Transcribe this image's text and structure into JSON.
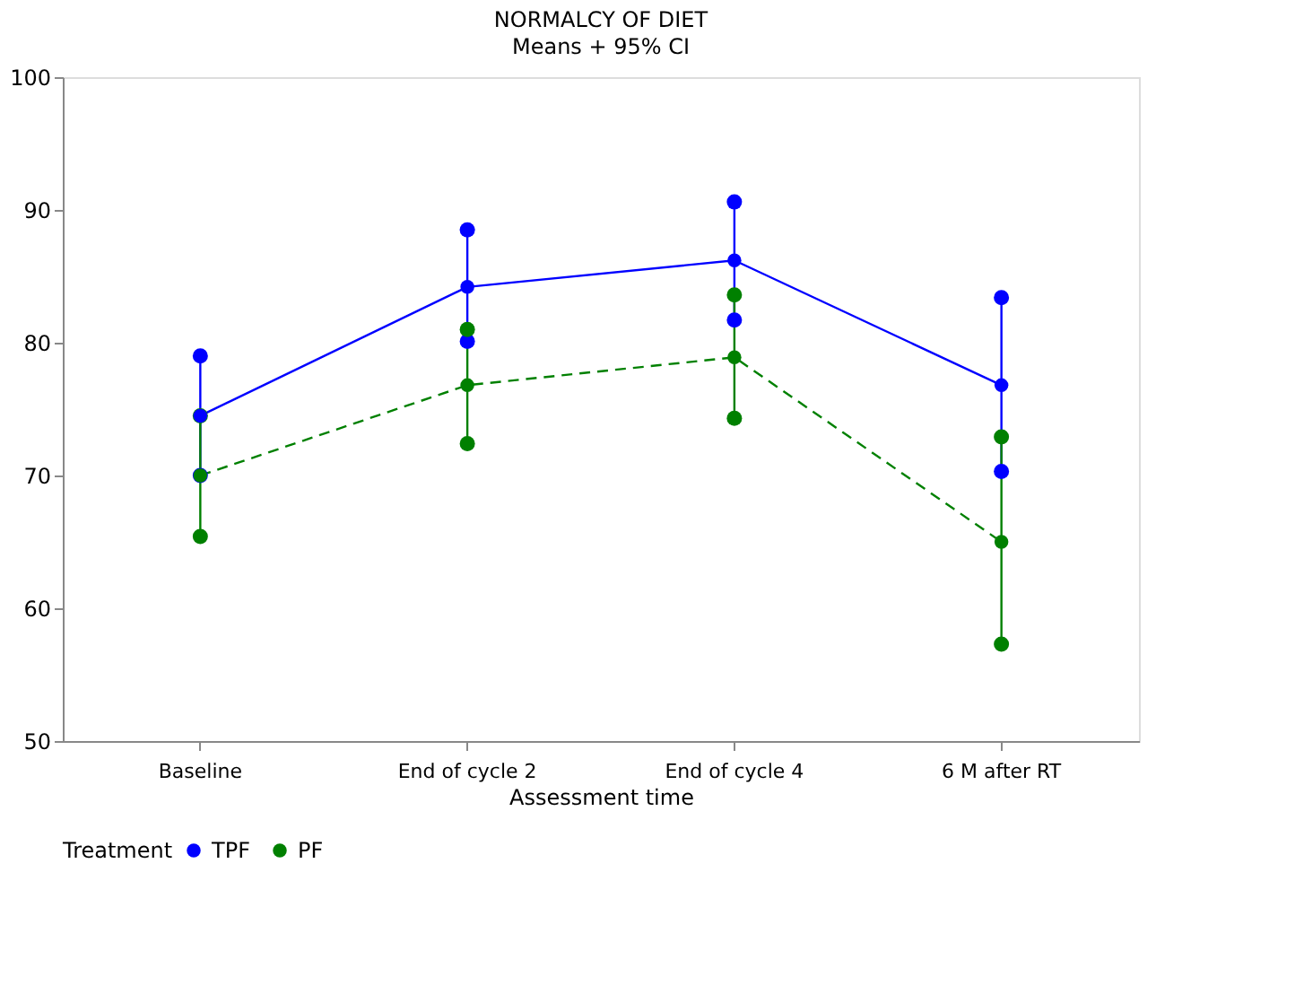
{
  "chart_data": {
    "type": "line",
    "title": "NORMALCY OF DIET",
    "subtitle": "Means + 95% CI",
    "xlabel": "Assessment time",
    "legend_title": "Treatment",
    "legend": "bottom",
    "marker": "circle",
    "categories": [
      "Baseline",
      "End of cycle 2",
      "End of cycle 4",
      "6 M after RT"
    ],
    "ylim": [
      50,
      100
    ],
    "yticks": [
      50,
      60,
      70,
      80,
      90,
      100
    ],
    "series": [
      {
        "name": "TPF",
        "color": "#0000ff",
        "line_style": "solid",
        "values": [
          74.5,
          84.2,
          86.2,
          76.8
        ],
        "errors": [
          [
            70.0,
            79.0
          ],
          [
            80.1,
            88.5
          ],
          [
            81.7,
            90.6
          ],
          [
            70.3,
            83.4
          ]
        ]
      },
      {
        "name": "PF",
        "color": "#008000",
        "line_style": "dashed",
        "values": [
          70.0,
          76.8,
          78.9,
          65.0
        ],
        "errors": [
          [
            65.4,
            74.5
          ],
          [
            72.4,
            81.0
          ],
          [
            74.3,
            83.6
          ],
          [
            57.3,
            72.9
          ]
        ]
      }
    ]
  }
}
